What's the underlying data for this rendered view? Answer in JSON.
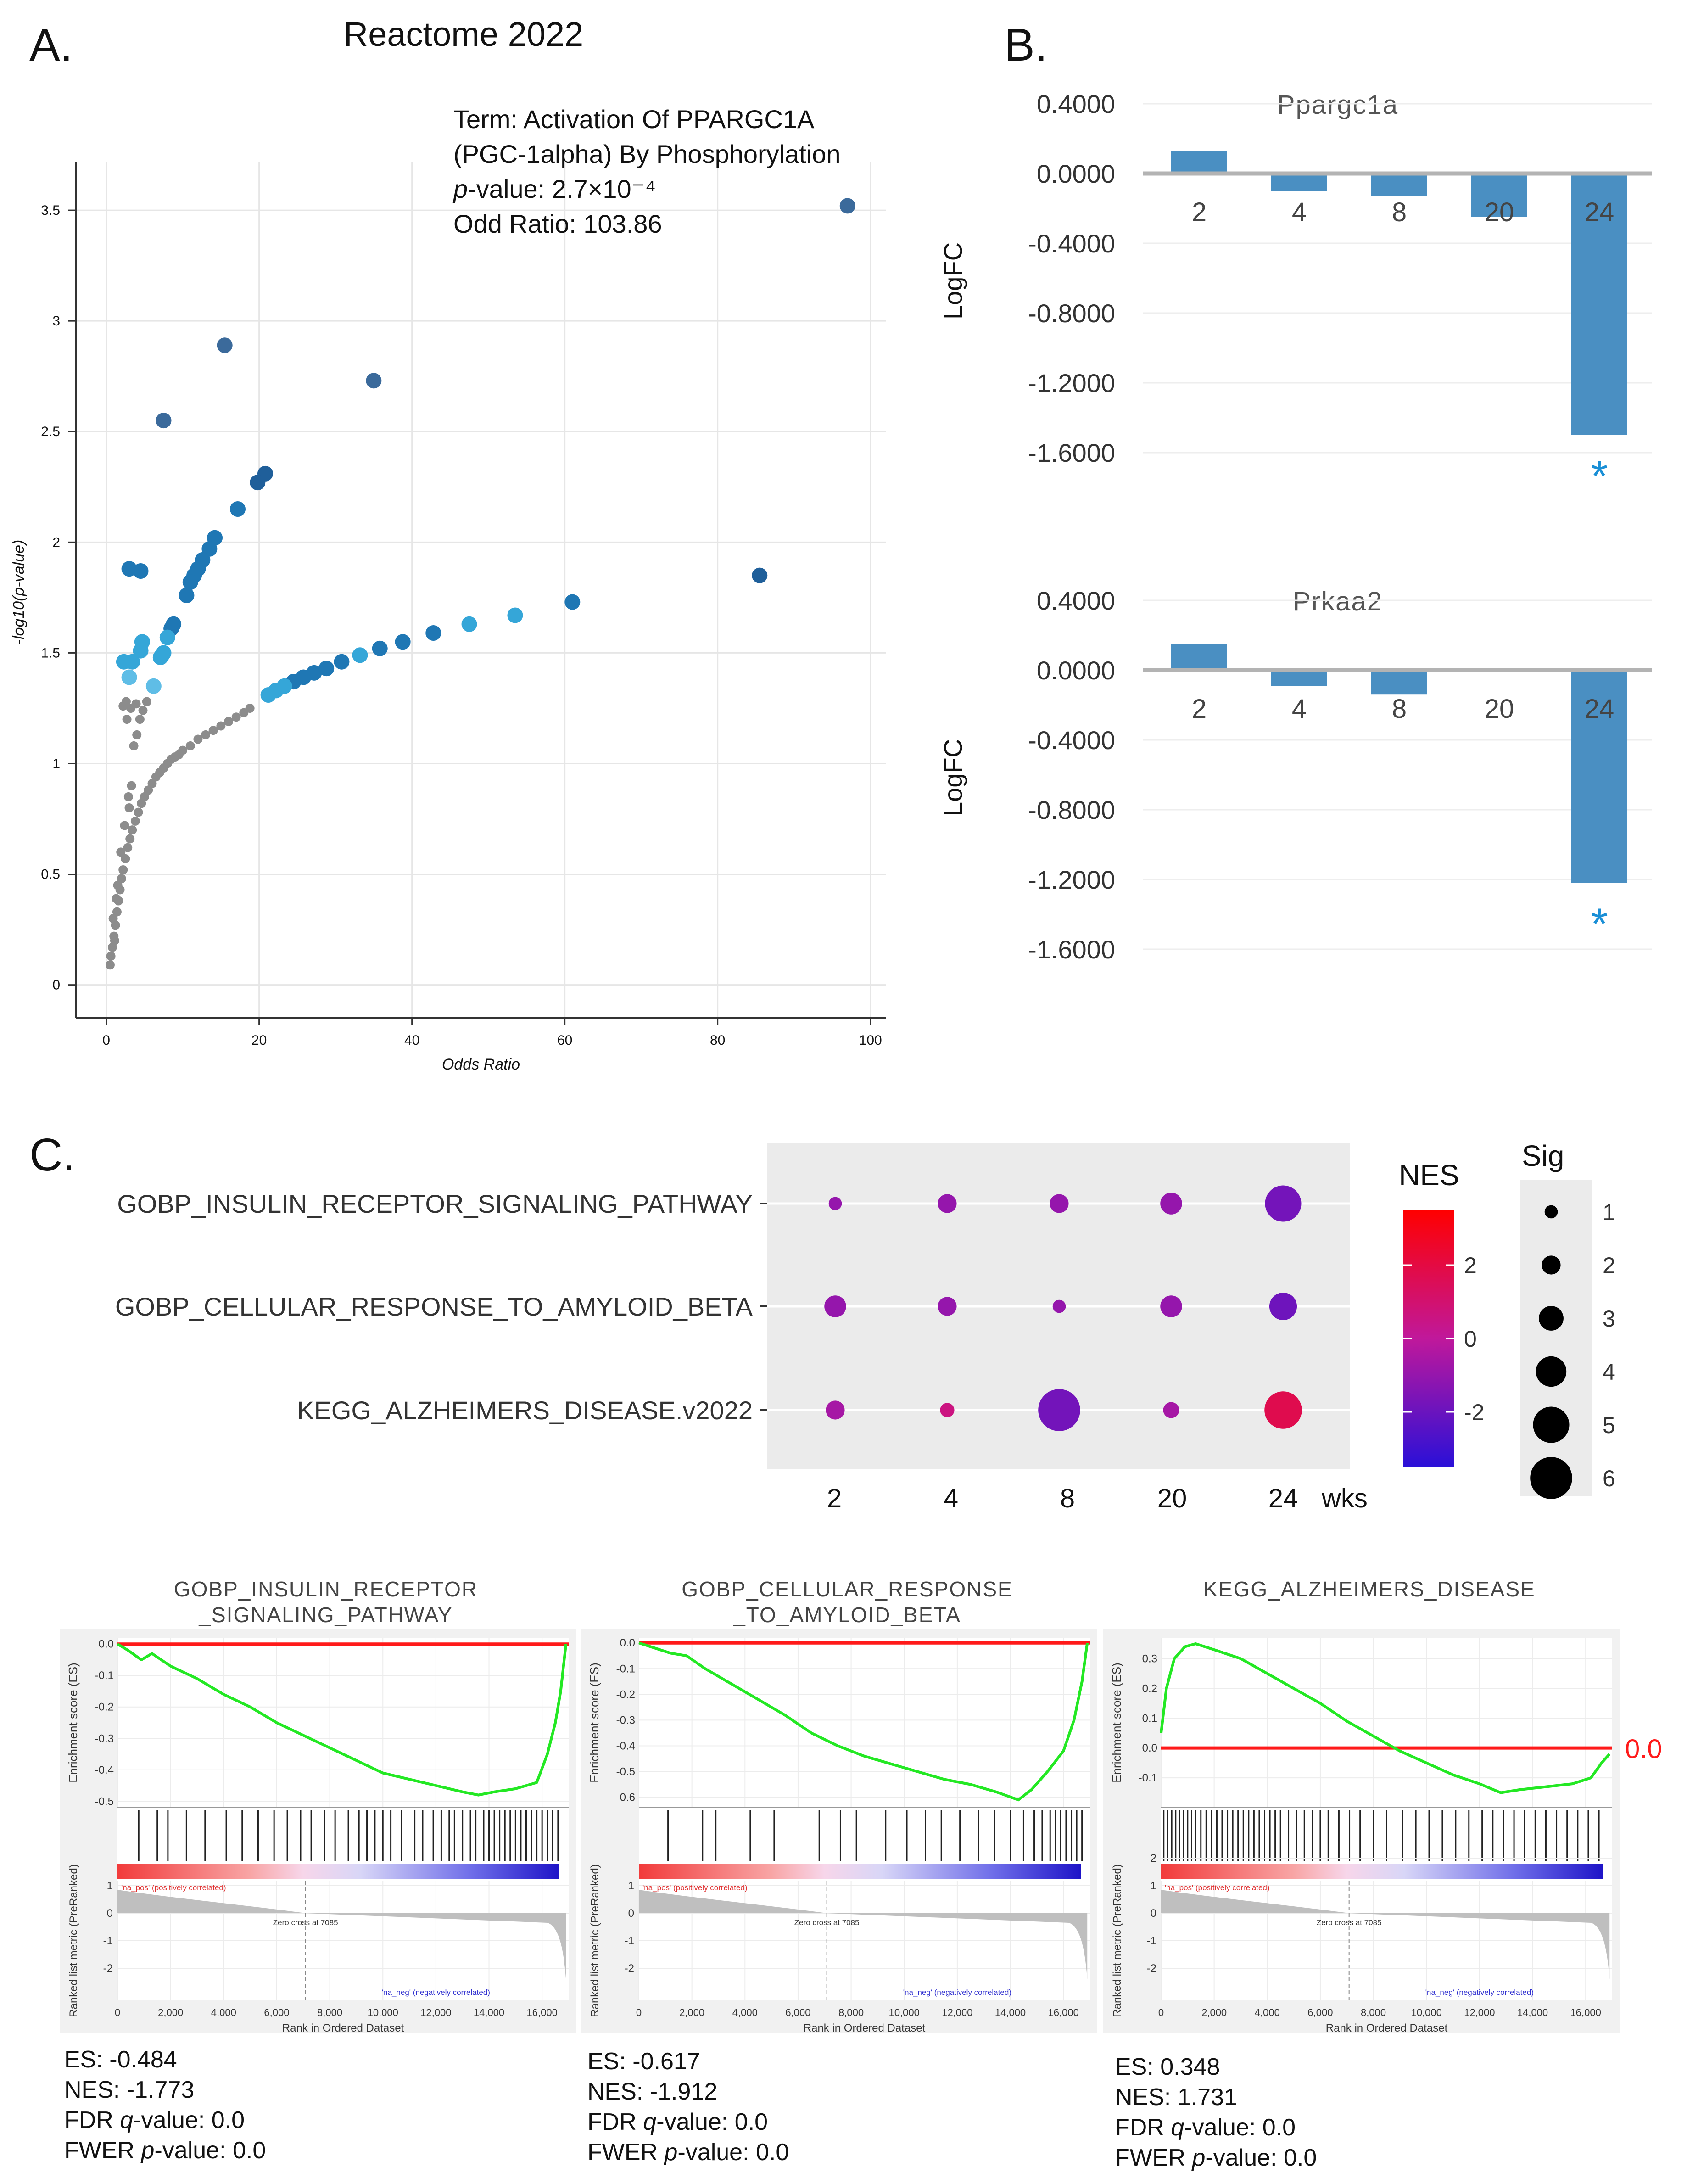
{
  "figure": {
    "panel_a_label": "A.",
    "panel_b_label": "B.",
    "panel_c_label": "C."
  },
  "chart_data": [
    {
      "id": "A",
      "type": "scatter",
      "title": "Reactome 2022",
      "xlabel": "Odds Ratio",
      "ylabel": "-log10(p-value)",
      "xlim": [
        -4,
        102
      ],
      "ylim": [
        -0.15,
        3.72
      ],
      "xticks": [
        0,
        20,
        40,
        60,
        80,
        100
      ],
      "yticks": [
        0,
        0.5,
        1,
        1.5,
        2,
        2.5,
        3,
        3.5
      ],
      "ytick_labels": [
        "0",
        "0.5",
        "1",
        "1.5",
        "2",
        "2.5",
        "3",
        "3.5"
      ],
      "annotation": {
        "term_line1": "Term: Activation Of PPARGC1A",
        "term_line2": "(PGC-1alpha) By Phosphorylation",
        "p_label": "p",
        "p_rest": "-value: 2.7×10⁻⁴",
        "odds": "Odd Ratio: 103.86"
      },
      "colored_points": [
        [
          97,
          3.52,
          "#3b6a9b"
        ],
        [
          15.5,
          2.89,
          "#3b6a9b"
        ],
        [
          35,
          2.73,
          "#3b6a9b"
        ],
        [
          7.5,
          2.55,
          "#3b6a9b"
        ],
        [
          20.8,
          2.31,
          "#1f5f9a"
        ],
        [
          19.8,
          2.27,
          "#1f5f9a"
        ],
        [
          17.2,
          2.15,
          "#1f77b4"
        ],
        [
          14.2,
          2.02,
          "#1f77b4"
        ],
        [
          13.5,
          1.97,
          "#1f77b4"
        ],
        [
          12.6,
          1.92,
          "#1f77b4"
        ],
        [
          12.0,
          1.88,
          "#1f77b4"
        ],
        [
          11.5,
          1.85,
          "#1f77b4"
        ],
        [
          11.0,
          1.82,
          "#1f77b4"
        ],
        [
          10.5,
          1.76,
          "#1f77b4"
        ],
        [
          3.0,
          1.88,
          "#1f77b4"
        ],
        [
          4.5,
          1.87,
          "#1f77b4"
        ],
        [
          85.5,
          1.85,
          "#1f5f9a"
        ],
        [
          8.8,
          1.63,
          "#1f77b4"
        ],
        [
          8.5,
          1.61,
          "#1f77b4"
        ],
        [
          8.0,
          1.57,
          "#35a6d8"
        ],
        [
          7.5,
          1.5,
          "#35a6d8"
        ],
        [
          7.3,
          1.49,
          "#35a6d8"
        ],
        [
          7.1,
          1.48,
          "#35a6d8"
        ],
        [
          4.7,
          1.55,
          "#35a6d8"
        ],
        [
          4.5,
          1.51,
          "#35a6d8"
        ],
        [
          2.3,
          1.46,
          "#35a6d8"
        ],
        [
          3.4,
          1.46,
          "#35a6d8"
        ],
        [
          3.0,
          1.39,
          "#5fbde6"
        ],
        [
          6.2,
          1.35,
          "#5fbde6"
        ],
        [
          61,
          1.73,
          "#1f77b4"
        ],
        [
          53.5,
          1.67,
          "#35a6d8"
        ],
        [
          47.5,
          1.63,
          "#35a6d8"
        ],
        [
          42.8,
          1.59,
          "#1f77b4"
        ],
        [
          38.8,
          1.55,
          "#1f77b4"
        ],
        [
          35.8,
          1.52,
          "#1f77b4"
        ],
        [
          33.2,
          1.49,
          "#35a6d8"
        ],
        [
          30.8,
          1.46,
          "#1f77b4"
        ],
        [
          28.8,
          1.43,
          "#1f77b4"
        ],
        [
          27.2,
          1.41,
          "#1f77b4"
        ],
        [
          25.8,
          1.39,
          "#1f77b4"
        ],
        [
          24.5,
          1.37,
          "#1f77b4"
        ],
        [
          23.3,
          1.35,
          "#35a6d8"
        ],
        [
          22.2,
          1.33,
          "#35a6d8"
        ],
        [
          21.2,
          1.31,
          "#35a6d8"
        ]
      ],
      "grey_points": [
        [
          0.5,
          0.09
        ],
        [
          0.6,
          0.13
        ],
        [
          0.8,
          0.17
        ],
        [
          1.0,
          0.22
        ],
        [
          1.2,
          0.27
        ],
        [
          1.4,
          0.33
        ],
        [
          1.6,
          0.38
        ],
        [
          1.8,
          0.43
        ],
        [
          2.0,
          0.48
        ],
        [
          2.2,
          0.52
        ],
        [
          2.5,
          0.57
        ],
        [
          2.8,
          0.62
        ],
        [
          3.1,
          0.66
        ],
        [
          3.4,
          0.7
        ],
        [
          3.8,
          0.74
        ],
        [
          4.2,
          0.78
        ],
        [
          4.6,
          0.82
        ],
        [
          5.0,
          0.85
        ],
        [
          5.5,
          0.88
        ],
        [
          6.0,
          0.91
        ],
        [
          6.5,
          0.94
        ],
        [
          7.0,
          0.96
        ],
        [
          7.5,
          0.98
        ],
        [
          8.0,
          1.0
        ],
        [
          8.5,
          1.02
        ],
        [
          9.0,
          1.03
        ],
        [
          9.5,
          1.04
        ],
        [
          10.0,
          1.06
        ],
        [
          11.0,
          1.08
        ],
        [
          12.0,
          1.11
        ],
        [
          13.0,
          1.13
        ],
        [
          14.0,
          1.15
        ],
        [
          15.0,
          1.17
        ],
        [
          16.0,
          1.19
        ],
        [
          17.0,
          1.21
        ],
        [
          18.0,
          1.23
        ],
        [
          18.8,
          1.25
        ],
        [
          1.5,
          0.45
        ],
        [
          1.9,
          0.6
        ],
        [
          2.4,
          0.72
        ],
        [
          2.9,
          0.85
        ],
        [
          3.3,
          0.9
        ],
        [
          3.6,
          1.08
        ],
        [
          4.0,
          1.13
        ],
        [
          4.4,
          1.2
        ],
        [
          2.7,
          1.2
        ],
        [
          3.2,
          1.25
        ],
        [
          2.2,
          1.26
        ],
        [
          2.6,
          1.28
        ],
        [
          3.9,
          1.27
        ],
        [
          4.8,
          1.24
        ],
        [
          5.3,
          1.28
        ],
        [
          3.0,
          0.8
        ],
        [
          0.9,
          0.3
        ],
        [
          1.1,
          0.2
        ],
        [
          1.3,
          0.39
        ]
      ]
    },
    {
      "id": "B1",
      "type": "bar",
      "title": "Ppargc1a",
      "ylabel": "LogFC",
      "categories": [
        "2",
        "4",
        "8",
        "20",
        "24"
      ],
      "values": [
        0.13,
        -0.1,
        -0.13,
        -0.25,
        -1.5
      ],
      "significance": [
        "",
        "",
        "",
        "",
        "*"
      ],
      "yticks": [
        0.4,
        0.0,
        -0.4,
        -0.8,
        -1.2,
        -1.6
      ],
      "ytick_labels": [
        "0.4000",
        "0.0000",
        "-0.4000",
        "-0.8000",
        "-1.2000",
        "-1.6000"
      ],
      "ylim": [
        -1.65,
        0.45
      ]
    },
    {
      "id": "B2",
      "type": "bar",
      "title": "Prkaa2",
      "ylabel": "LogFC",
      "categories": [
        "2",
        "4",
        "8",
        "20",
        "24"
      ],
      "values": [
        0.15,
        -0.09,
        -0.14,
        0.0,
        -1.22
      ],
      "significance": [
        "",
        "",
        "",
        "",
        "*"
      ],
      "yticks": [
        0.4,
        0.0,
        -0.4,
        -0.8,
        -1.2,
        -1.6
      ],
      "ytick_labels": [
        "0.4000",
        "0.0000",
        "-0.4000",
        "-0.8000",
        "-1.2000",
        "-1.6000"
      ],
      "ylim": [
        -1.65,
        0.45
      ]
    },
    {
      "id": "C",
      "type": "scatter",
      "subtype": "dot-plot",
      "pathways": [
        "GOBP_INSULIN_RECEPTOR_SIGNALING_PATHWAY",
        "GOBP_CELLULAR_RESPONSE_TO_AMYLOID_BETA",
        "KEGG_ALZHEIMERS_DISEASE.v2022"
      ],
      "x_labels": [
        "2",
        "4",
        "8",
        "20",
        "24"
      ],
      "x_unit": "wks",
      "sig": [
        [
          1,
          2,
          2,
          2.5,
          5
        ],
        [
          2.5,
          2,
          1,
          2.5,
          3.5
        ],
        [
          2,
          1.2,
          6,
          1.5,
          5.2
        ]
      ],
      "nes": [
        [
          -1,
          -1,
          -1,
          -1,
          -1.77
        ],
        [
          -1,
          -1,
          -1,
          -1,
          -1.91
        ],
        [
          -0.6,
          0.6,
          -1.8,
          -0.6,
          1.73
        ]
      ],
      "nes_legend": {
        "title": "NES",
        "ticks": [
          2,
          0,
          -2
        ],
        "range": [
          -3.5,
          3.5
        ]
      },
      "sig_legend": {
        "title": "Sig",
        "ticks": [
          1,
          2,
          3,
          4,
          5,
          6
        ]
      }
    },
    {
      "id": "GSEA1",
      "type": "line",
      "title_line1": "GOBP_INSULIN_RECEPTOR",
      "title_line2": "_SIGNALING_PATHWAY",
      "es_label": "Enrichment score (ES)",
      "rank_label": "Ranked list metric (PreRanked)",
      "xlabel": "Rank in Ordered Dataset",
      "xticks": [
        0,
        2000,
        4000,
        6000,
        8000,
        10000,
        12000,
        14000,
        16000
      ],
      "xtick_labels": [
        "0",
        "2,000",
        "4,000",
        "6,000",
        "8,000",
        "10,000",
        "12,000",
        "14,000",
        "16,000"
      ],
      "es_yticks": [
        0.0,
        -0.1,
        -0.2,
        -0.3,
        -0.4,
        -0.5
      ],
      "es_ytick_labels": [
        "0.0",
        "-0.1",
        "-0.2",
        "-0.3",
        "-0.4",
        "-0.5"
      ],
      "es_ylim": [
        -0.52,
        0.02
      ],
      "metric_yticks": [
        1,
        0,
        -1,
        -2
      ],
      "pos_label": "'na_pos' (positively correlated)",
      "neg_label": "'na_neg' (negatively correlated)",
      "zero_cross": "Zero cross at 7085",
      "es_curve": [
        [
          0,
          0
        ],
        [
          400,
          -0.02
        ],
        [
          900,
          -0.05
        ],
        [
          1300,
          -0.03
        ],
        [
          2000,
          -0.07
        ],
        [
          3000,
          -0.11
        ],
        [
          4000,
          -0.16
        ],
        [
          5000,
          -0.2
        ],
        [
          6000,
          -0.25
        ],
        [
          7000,
          -0.29
        ],
        [
          8000,
          -0.33
        ],
        [
          9000,
          -0.37
        ],
        [
          10000,
          -0.41
        ],
        [
          11000,
          -0.43
        ],
        [
          12000,
          -0.45
        ],
        [
          13000,
          -0.47
        ],
        [
          13600,
          -0.48
        ],
        [
          14200,
          -0.47
        ],
        [
          15000,
          -0.46
        ],
        [
          15800,
          -0.44
        ],
        [
          16200,
          -0.35
        ],
        [
          16500,
          -0.25
        ],
        [
          16700,
          -0.15
        ],
        [
          16900,
          0
        ]
      ],
      "hits": [
        800,
        1500,
        1900,
        2600,
        3300,
        4100,
        4700,
        5300,
        5900,
        6400,
        6900,
        7300,
        7800,
        8200,
        8700,
        9100,
        9400,
        9700,
        10000,
        10300,
        10700,
        11200,
        11500,
        11900,
        12200,
        12500,
        12700,
        13000,
        13300,
        13500,
        13800,
        14000,
        14200,
        14400,
        14600,
        14800,
        15000,
        15200,
        15400,
        15600,
        15800,
        16000,
        16200,
        16400,
        16600
      ],
      "stats": {
        "es": "ES: -0.484",
        "nes": "NES: -1.773",
        "fdr_pre": "FDR ",
        "fdr_it": "q",
        "fdr_post": "-value: 0.0",
        "fwer_pre": "FWER ",
        "fwer_it": "p",
        "fwer_post": "-value: 0.0"
      }
    },
    {
      "id": "GSEA2",
      "type": "line",
      "title_line1": "GOBP_CELLULAR_RESPONSE",
      "title_line2": "_TO_AMYLOID_BETA",
      "es_label": "Enrichment score (ES)",
      "rank_label": "Ranked list metric (PreRanked)",
      "xlabel": "Rank in Ordered Dataset",
      "xticks": [
        0,
        2000,
        4000,
        6000,
        8000,
        10000,
        12000,
        14000,
        16000
      ],
      "xtick_labels": [
        "0",
        "2,000",
        "4,000",
        "6,000",
        "8,000",
        "10,000",
        "12,000",
        "14,000",
        "16,000"
      ],
      "es_yticks": [
        0.0,
        -0.1,
        -0.2,
        -0.3,
        -0.4,
        -0.5,
        -0.6
      ],
      "es_ytick_labels": [
        "0.0",
        "-0.1",
        "-0.2",
        "-0.3",
        "-0.4",
        "-0.5",
        "-0.6"
      ],
      "es_ylim": [
        -0.64,
        0.02
      ],
      "metric_yticks": [
        1,
        0,
        -1,
        -2
      ],
      "pos_label": "'na_pos' (positively correlated)",
      "neg_label": "'na_neg' (negatively correlated)",
      "zero_cross": "Zero cross at 7085",
      "es_curve": [
        [
          0,
          0
        ],
        [
          600,
          -0.02
        ],
        [
          1200,
          -0.04
        ],
        [
          1800,
          -0.05
        ],
        [
          2500,
          -0.1
        ],
        [
          3500,
          -0.16
        ],
        [
          4500,
          -0.22
        ],
        [
          5500,
          -0.28
        ],
        [
          6500,
          -0.35
        ],
        [
          7500,
          -0.4
        ],
        [
          8500,
          -0.44
        ],
        [
          9500,
          -0.47
        ],
        [
          10500,
          -0.5
        ],
        [
          11500,
          -0.53
        ],
        [
          12500,
          -0.55
        ],
        [
          13500,
          -0.58
        ],
        [
          14300,
          -0.61
        ],
        [
          14800,
          -0.57
        ],
        [
          15400,
          -0.5
        ],
        [
          16000,
          -0.42
        ],
        [
          16400,
          -0.3
        ],
        [
          16700,
          -0.15
        ],
        [
          16900,
          0
        ]
      ],
      "hits": [
        1100,
        2400,
        2900,
        4200,
        5100,
        6800,
        7600,
        8200,
        9300,
        10100,
        10800,
        11400,
        12100,
        12800,
        13400,
        14000,
        14500,
        14900,
        15200,
        15500,
        15700,
        15900,
        16100,
        16300,
        16500,
        16700
      ],
      "stats": {
        "es": "ES: -0.617",
        "nes": "NES: -1.912",
        "fdr_pre": "FDR ",
        "fdr_it": "q",
        "fdr_post": "-value: 0.0",
        "fwer_pre": "FWER ",
        "fwer_it": "p",
        "fwer_post": "-value: 0.0"
      }
    },
    {
      "id": "GSEA3",
      "type": "line",
      "title_line1": "KEGG_ALZHEIMERS_DISEASE",
      "title_line2": "",
      "es_label": "Enrichment score (ES)",
      "rank_label": "Ranked list metric (PreRanked)",
      "xlabel": "Rank in Ordered Dataset",
      "zero_marker": "0.0",
      "xticks": [
        0,
        2000,
        4000,
        6000,
        8000,
        10000,
        12000,
        14000,
        16000
      ],
      "xtick_labels": [
        "0",
        "2,000",
        "4,000",
        "6,000",
        "8,000",
        "10,000",
        "12,000",
        "14,000",
        "16,000"
      ],
      "es_yticks": [
        0.3,
        0.2,
        0.1,
        0.0,
        -0.1
      ],
      "es_ytick_labels": [
        "0.3",
        "0.2",
        "0.1",
        "0.0",
        "-0.1"
      ],
      "es_ylim": [
        -0.2,
        0.37
      ],
      "metric_yticks": [
        2,
        1,
        0,
        -1,
        -2
      ],
      "pos_label": "'na_pos' (positively correlated)",
      "neg_label": "'na_neg' (negatively correlated)",
      "zero_cross": "Zero cross at 7085",
      "es_curve": [
        [
          0,
          0.05
        ],
        [
          200,
          0.2
        ],
        [
          500,
          0.3
        ],
        [
          900,
          0.34
        ],
        [
          1300,
          0.35
        ],
        [
          2000,
          0.33
        ],
        [
          3000,
          0.3
        ],
        [
          4000,
          0.25
        ],
        [
          5000,
          0.2
        ],
        [
          6000,
          0.15
        ],
        [
          7000,
          0.09
        ],
        [
          8000,
          0.04
        ],
        [
          9000,
          -0.01
        ],
        [
          10000,
          -0.05
        ],
        [
          11000,
          -0.09
        ],
        [
          12000,
          -0.12
        ],
        [
          12800,
          -0.15
        ],
        [
          13500,
          -0.14
        ],
        [
          14500,
          -0.13
        ],
        [
          15500,
          -0.12
        ],
        [
          16200,
          -0.1
        ],
        [
          16600,
          -0.05
        ],
        [
          16900,
          -0.02
        ]
      ],
      "hits": [
        100,
        250,
        400,
        550,
        700,
        850,
        1000,
        1150,
        1300,
        1500,
        1700,
        1900,
        2100,
        2300,
        2500,
        2700,
        2900,
        3100,
        3300,
        3500,
        3700,
        3900,
        4100,
        4300,
        4500,
        4800,
        5100,
        5400,
        5700,
        6000,
        6300,
        6700,
        7100,
        7500,
        8000,
        8500,
        9100,
        9600,
        10100,
        10600,
        11100,
        11600,
        12100,
        12500,
        12900,
        13300,
        13700,
        14100,
        14500,
        14900,
        15300,
        15700,
        16100,
        16500
      ],
      "stats": {
        "es": "ES: 0.348",
        "nes": "NES: 1.731",
        "fdr_pre": "FDR ",
        "fdr_it": "q",
        "fdr_post": "-value: 0.0",
        "fwer_pre": "FWER ",
        "fwer_it": "p",
        "fwer_post": "-value: 0.0"
      }
    }
  ]
}
